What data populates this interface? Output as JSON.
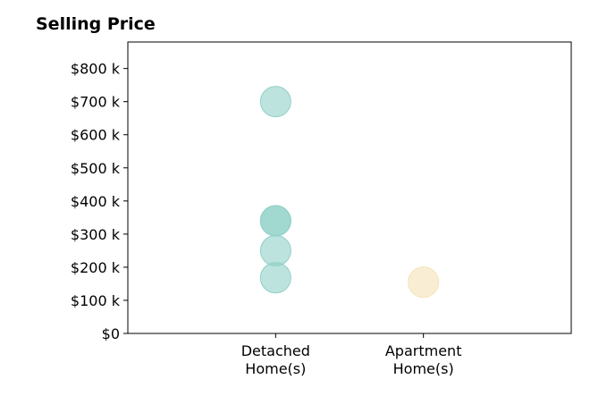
{
  "chart_data": {
    "type": "scatter",
    "title": "Selling Price",
    "xlabel": "",
    "ylabel": "",
    "categories": [
      "Detached\nHome(s)",
      "Apartment\nHome(s)"
    ],
    "y_ticks": [
      "$0",
      "$100 k",
      "$200 k",
      "$300 k",
      "$400 k",
      "$500 k",
      "$600 k",
      "$700 k",
      "$800 k"
    ],
    "y_tick_values": [
      0,
      100000,
      200000,
      300000,
      400000,
      500000,
      600000,
      700000,
      800000
    ],
    "ylim": [
      0,
      880000
    ],
    "xlim": [
      -1,
      2
    ],
    "grid": false,
    "series": [
      {
        "category": "Detached\nHome(s)",
        "color": "#8fd0c6",
        "values": [
          700000,
          340000,
          340000,
          250000,
          168000
        ]
      },
      {
        "category": "Apartment\nHome(s)",
        "color": "#f5e3b8",
        "values": [
          155000
        ]
      }
    ]
  }
}
